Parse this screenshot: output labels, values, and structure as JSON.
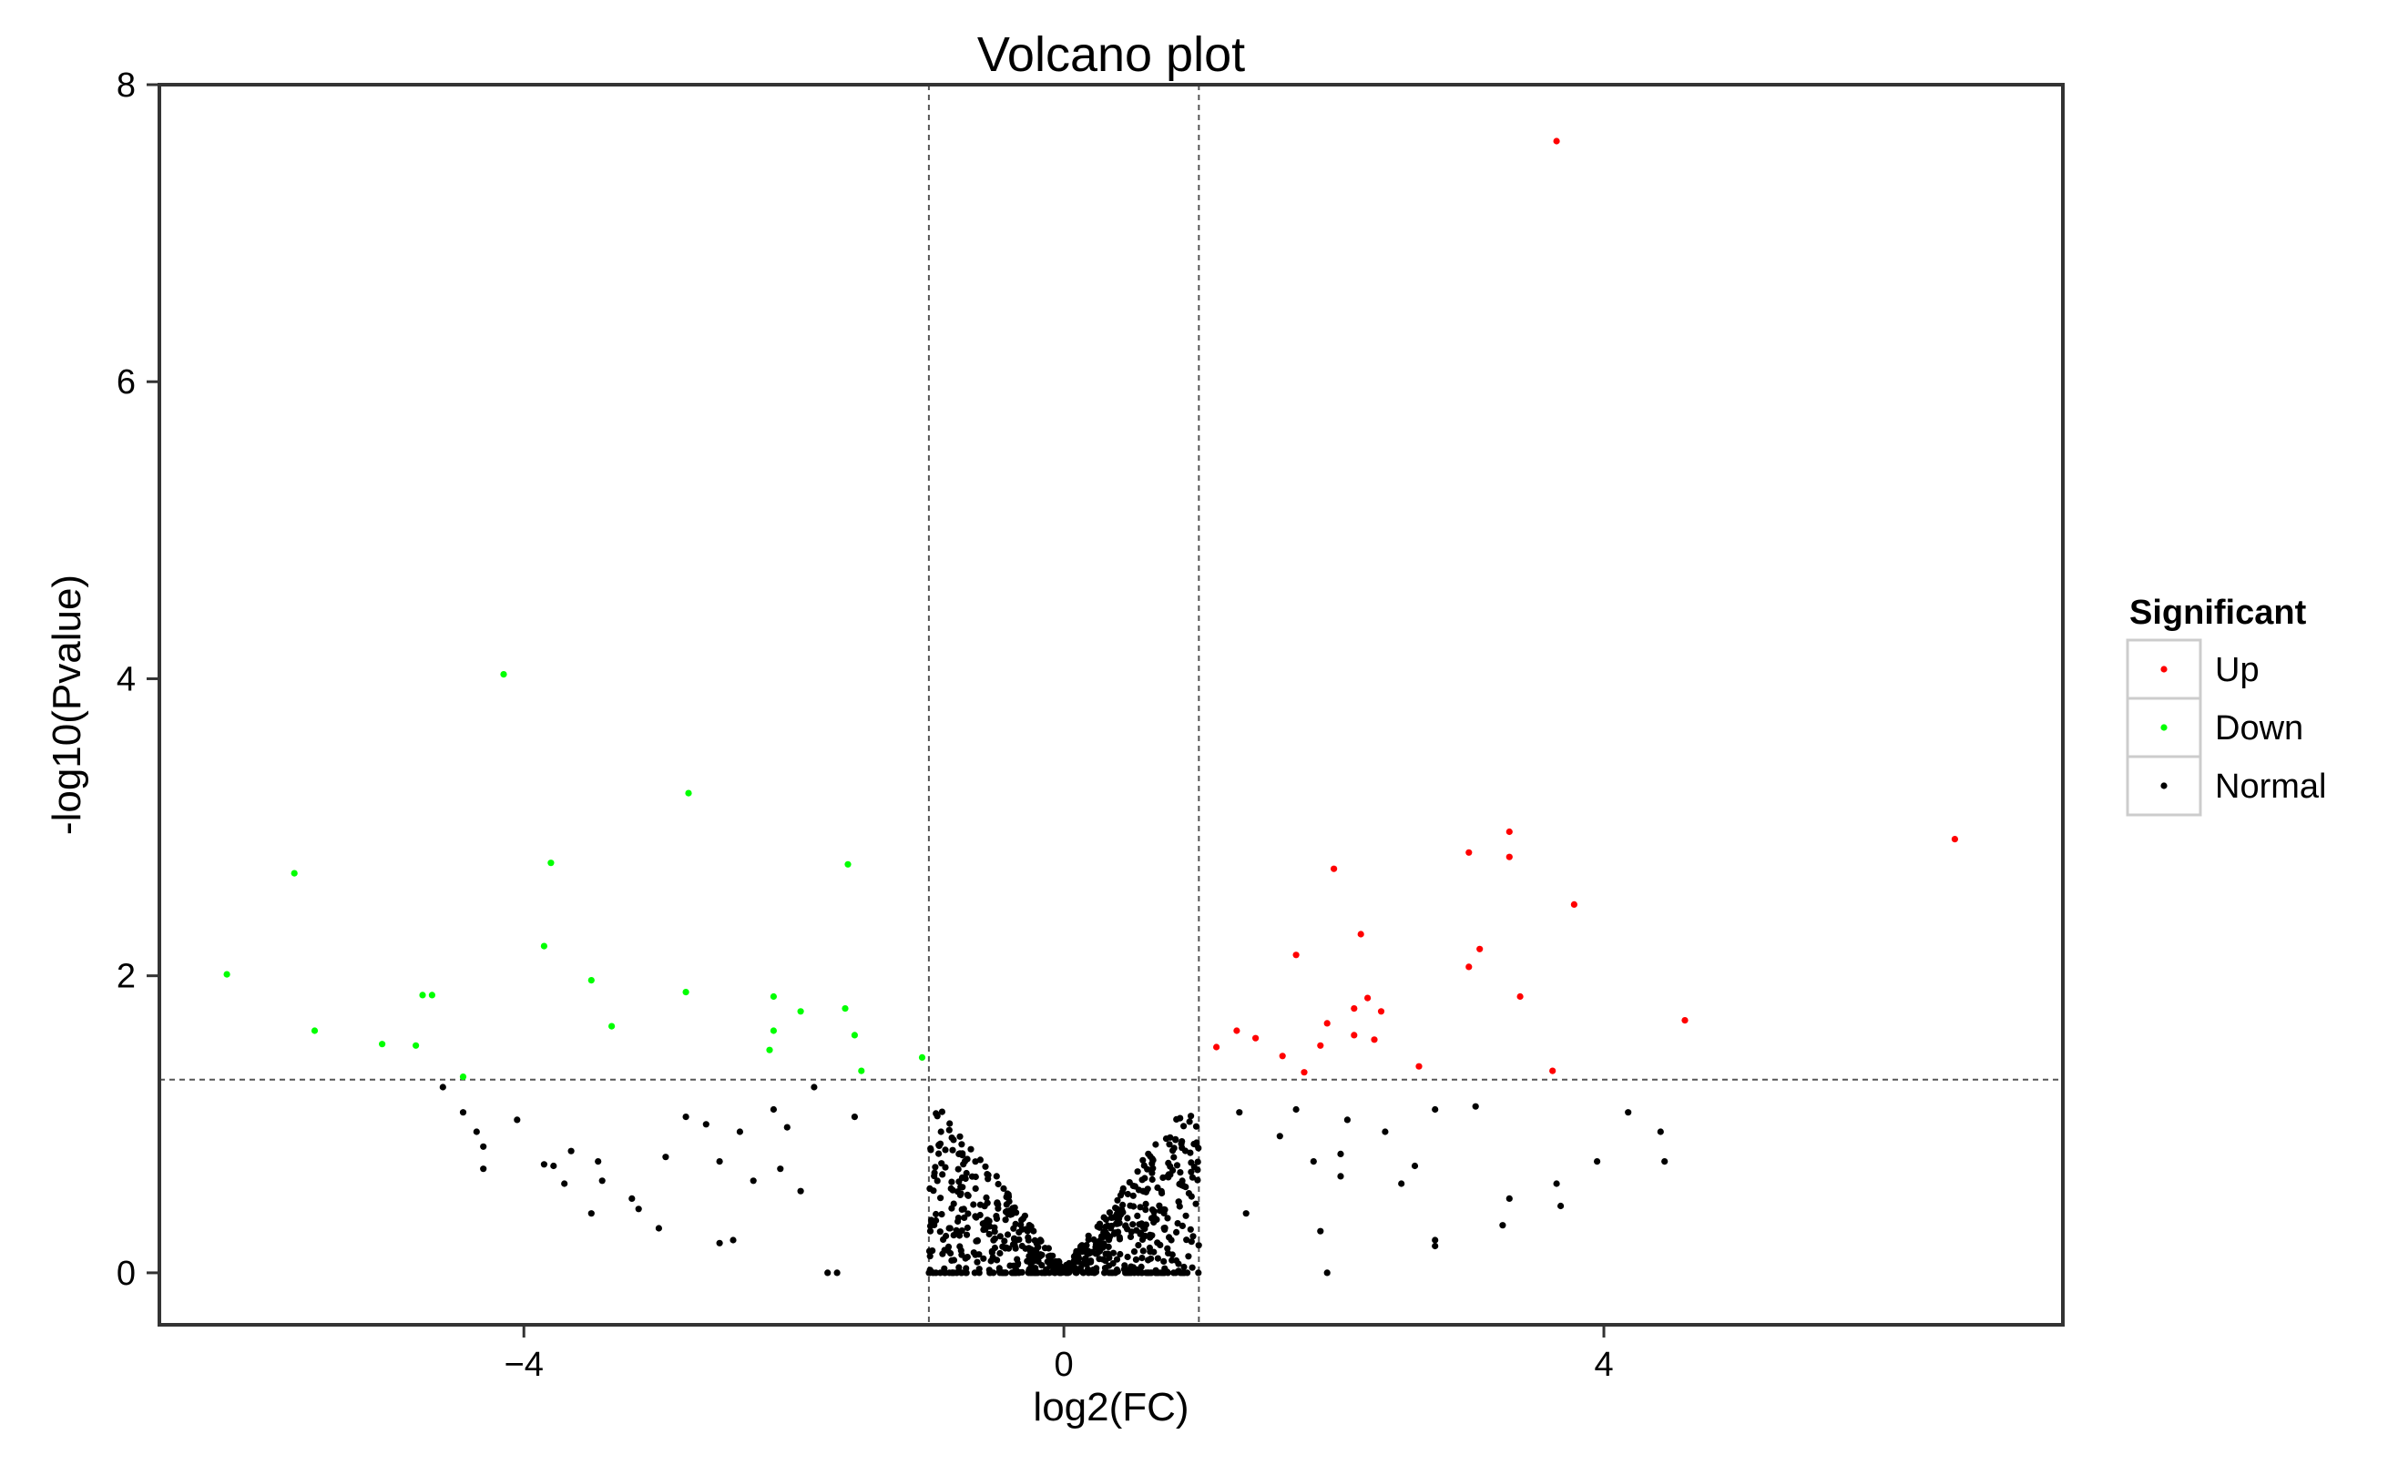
{
  "chart_data": {
    "type": "scatter",
    "title": "Volcano plot",
    "xlabel": "log2(FC)",
    "ylabel": "-log10(Pvalue)",
    "xlim": [
      -6.7,
      7.4
    ],
    "ylim": [
      -0.35,
      8.0
    ],
    "x_ticks": [
      {
        "value": -4,
        "label": "−4"
      },
      {
        "value": 0,
        "label": "0"
      },
      {
        "value": 4,
        "label": "4"
      }
    ],
    "y_ticks": [
      {
        "value": 0,
        "label": "0"
      },
      {
        "value": 2,
        "label": "2"
      },
      {
        "value": 4,
        "label": "4"
      },
      {
        "value": 6,
        "label": "6"
      },
      {
        "value": 8,
        "label": "8"
      }
    ],
    "grid": false,
    "threshold_lines": {
      "x": [
        -1,
        1
      ],
      "y": 1.301
    },
    "legend": {
      "title": "Significant",
      "placement": "right",
      "entries": [
        {
          "label": "Up",
          "color": "#ff0000"
        },
        {
          "label": "Down",
          "color": "#00ff00"
        },
        {
          "label": "Normal",
          "color": "#000000"
        }
      ]
    },
    "series": [
      {
        "name": "Up",
        "color": "#ff0000",
        "points": [
          [
            3.65,
            7.62
          ],
          [
            6.6,
            2.92
          ],
          [
            3.3,
            2.97
          ],
          [
            3.3,
            2.8
          ],
          [
            3.0,
            2.83
          ],
          [
            2.0,
            2.72
          ],
          [
            3.78,
            2.48
          ],
          [
            2.2,
            2.28
          ],
          [
            3.08,
            2.18
          ],
          [
            3.0,
            2.06
          ],
          [
            1.72,
            2.14
          ],
          [
            3.38,
            1.86
          ],
          [
            2.25,
            1.85
          ],
          [
            2.15,
            1.78
          ],
          [
            2.35,
            1.76
          ],
          [
            4.6,
            1.7
          ],
          [
            1.95,
            1.68
          ],
          [
            1.28,
            1.63
          ],
          [
            2.15,
            1.6
          ],
          [
            2.3,
            1.57
          ],
          [
            1.42,
            1.58
          ],
          [
            1.9,
            1.53
          ],
          [
            1.13,
            1.52
          ],
          [
            1.62,
            1.46
          ],
          [
            2.63,
            1.39
          ],
          [
            3.62,
            1.36
          ],
          [
            1.78,
            1.35
          ]
        ]
      },
      {
        "name": "Down",
        "color": "#00ff00",
        "points": [
          [
            -4.15,
            4.03
          ],
          [
            -2.78,
            3.23
          ],
          [
            -3.8,
            2.76
          ],
          [
            -1.6,
            2.75
          ],
          [
            -5.7,
            2.69
          ],
          [
            -3.85,
            2.2
          ],
          [
            -6.2,
            2.01
          ],
          [
            -3.5,
            1.97
          ],
          [
            -2.8,
            1.89
          ],
          [
            -4.75,
            1.87
          ],
          [
            -4.68,
            1.87
          ],
          [
            -2.15,
            1.86
          ],
          [
            -1.95,
            1.76
          ],
          [
            -1.62,
            1.78
          ],
          [
            -3.35,
            1.66
          ],
          [
            -5.55,
            1.63
          ],
          [
            -2.15,
            1.63
          ],
          [
            -1.55,
            1.6
          ],
          [
            -5.05,
            1.54
          ],
          [
            -4.8,
            1.53
          ],
          [
            -2.18,
            1.5
          ],
          [
            -1.05,
            1.45
          ],
          [
            -1.5,
            1.36
          ],
          [
            -4.45,
            1.32
          ]
        ]
      },
      {
        "name": "Normal",
        "color": "#000000",
        "generated_count": 700,
        "points": [
          [
            -4.6,
            1.25
          ],
          [
            -4.45,
            1.08
          ],
          [
            -4.35,
            0.95
          ],
          [
            -4.3,
            0.85
          ],
          [
            -4.3,
            0.7
          ],
          [
            -4.05,
            1.03
          ],
          [
            -3.85,
            0.73
          ],
          [
            -3.78,
            0.72
          ],
          [
            -3.7,
            0.6
          ],
          [
            -3.65,
            0.82
          ],
          [
            -3.5,
            0.4
          ],
          [
            -3.45,
            0.75
          ],
          [
            -3.42,
            0.62
          ],
          [
            -3.2,
            0.5
          ],
          [
            -3.15,
            0.43
          ],
          [
            -3.0,
            0.3
          ],
          [
            -2.95,
            0.78
          ],
          [
            -2.8,
            1.05
          ],
          [
            -2.65,
            1.0
          ],
          [
            -2.55,
            0.75
          ],
          [
            -2.55,
            0.2
          ],
          [
            -2.45,
            0.22
          ],
          [
            -2.4,
            0.95
          ],
          [
            -2.3,
            0.62
          ],
          [
            -2.15,
            1.1
          ],
          [
            -2.1,
            0.7
          ],
          [
            -2.05,
            0.98
          ],
          [
            -1.95,
            0.55
          ],
          [
            -1.85,
            1.25
          ],
          [
            -1.75,
            0.0
          ],
          [
            -1.68,
            0.0
          ],
          [
            -1.55,
            1.05
          ],
          [
            4.18,
            1.08
          ],
          [
            4.42,
            0.95
          ],
          [
            4.45,
            0.75
          ],
          [
            3.95,
            0.75
          ],
          [
            3.65,
            0.6
          ],
          [
            3.68,
            0.45
          ],
          [
            3.3,
            0.5
          ],
          [
            3.25,
            0.32
          ],
          [
            3.05,
            1.12
          ],
          [
            2.75,
            1.1
          ],
          [
            2.75,
            0.22
          ],
          [
            2.75,
            0.18
          ],
          [
            2.6,
            0.72
          ],
          [
            2.5,
            0.6
          ],
          [
            2.38,
            0.95
          ],
          [
            2.1,
            1.03
          ],
          [
            2.05,
            0.8
          ],
          [
            2.05,
            0.65
          ],
          [
            1.95,
            0.0
          ],
          [
            1.9,
            0.28
          ],
          [
            1.85,
            0.75
          ],
          [
            1.72,
            1.1
          ],
          [
            1.6,
            0.92
          ],
          [
            1.35,
            0.4
          ],
          [
            1.3,
            1.08
          ]
        ]
      }
    ]
  }
}
